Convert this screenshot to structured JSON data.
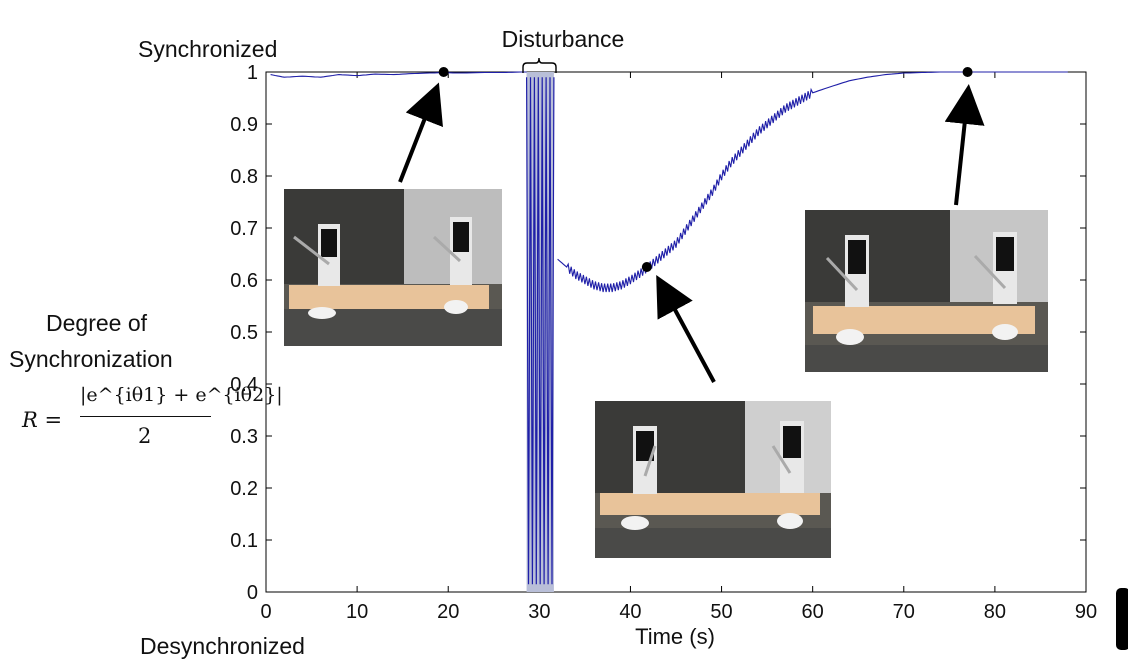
{
  "chart_data": {
    "type": "line",
    "title": "",
    "xlabel": "Time (s)",
    "ylabel": "Degree of Synchronization",
    "xlim": [
      0,
      90
    ],
    "ylim": [
      0,
      1
    ],
    "xticks": [
      0,
      10,
      20,
      30,
      40,
      50,
      60,
      70,
      80,
      90
    ],
    "yticks": [
      0,
      0.1,
      0.2,
      0.3,
      0.4,
      0.5,
      0.6,
      0.7,
      0.8,
      0.9,
      1
    ],
    "grid": false,
    "series": [
      {
        "name": "",
        "color": "#1f1fa8",
        "x": [
          0.5,
          2,
          4,
          6,
          8,
          10,
          12,
          14,
          16,
          18,
          19.5,
          21,
          24,
          26,
          28,
          28.6,
          32,
          33,
          34,
          35,
          36,
          37,
          38,
          39,
          40,
          41,
          42,
          43,
          44,
          45,
          46,
          47,
          48,
          49,
          50,
          51,
          52,
          53,
          54,
          55,
          56,
          57,
          58,
          59,
          60,
          62,
          64,
          66,
          68,
          70,
          72,
          74,
          77,
          80,
          88
        ],
        "y": [
          0.995,
          0.99,
          0.992,
          0.99,
          0.995,
          0.993,
          0.996,
          0.995,
          0.997,
          0.998,
          0.999,
          0.998,
          0.999,
          0.999,
          1.0,
          1.0,
          0.64,
          0.625,
          0.61,
          0.6,
          0.59,
          0.585,
          0.585,
          0.59,
          0.6,
          0.612,
          0.625,
          0.64,
          0.655,
          0.67,
          0.695,
          0.72,
          0.745,
          0.77,
          0.8,
          0.825,
          0.845,
          0.865,
          0.885,
          0.9,
          0.915,
          0.93,
          0.94,
          0.95,
          0.96,
          0.972,
          0.983,
          0.99,
          0.995,
          0.998,
          0.999,
          1.0,
          1.0,
          1.0,
          1.0
        ]
      }
    ],
    "disturbance": {
      "label": "Disturbance",
      "x_start": 28.6,
      "x_end": 31.6,
      "oscillation_min": 0,
      "oscillation_max": 1,
      "shade_color": "#b9bfd8"
    },
    "markers": [
      {
        "x": 19.5,
        "y": 1.0
      },
      {
        "x": 41.8,
        "y": 0.625
      },
      {
        "x": 77,
        "y": 1.0
      }
    ]
  },
  "labels": {
    "synchronized": "Synchronized",
    "desynchronized": "Desynchronized",
    "degree_line1": "Degree of",
    "degree_line2": "Synchronization",
    "formula_lhs": "R =",
    "formula_num": "|e^{iθ1} + e^{iθ2}|",
    "formula_den": "2"
  },
  "photos": [
    {
      "name": "metronomes-synchronized-photo"
    },
    {
      "name": "metronomes-recovering-photo"
    },
    {
      "name": "metronomes-resynchronized-photo"
    }
  ]
}
